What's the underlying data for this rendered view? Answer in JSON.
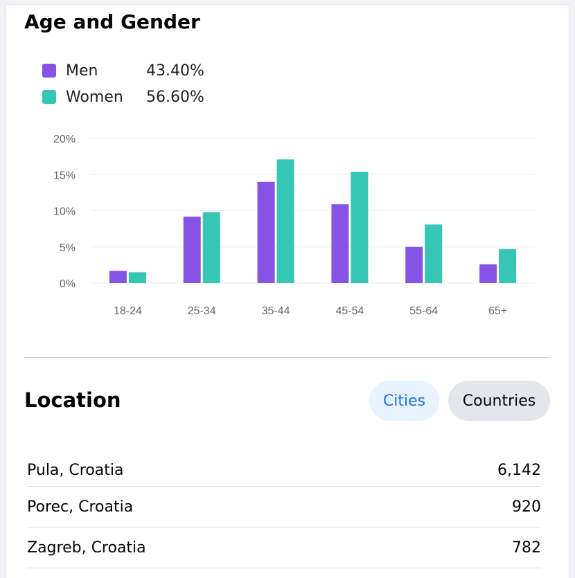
{
  "age_gender": {
    "title": "Age and Gender",
    "legend": [
      {
        "label": "Men",
        "value": "43.40%",
        "color": "#8752e6"
      },
      {
        "label": "Women",
        "value": "56.60%",
        "color": "#36c6b5"
      }
    ]
  },
  "chart_data": {
    "type": "bar",
    "categories": [
      "18-24",
      "25-34",
      "35-44",
      "45-54",
      "55-64",
      "65+"
    ],
    "series": [
      {
        "name": "Men",
        "color": "#8752e6",
        "values": [
          1.7,
          9.2,
          14.0,
          10.9,
          5.0,
          2.6
        ]
      },
      {
        "name": "Women",
        "color": "#36c6b5",
        "values": [
          1.5,
          9.8,
          17.1,
          15.4,
          8.1,
          4.7
        ]
      }
    ],
    "y_ticks": [
      "20%",
      "15%",
      "10%",
      "5%",
      "0%"
    ],
    "ylim": [
      0,
      20
    ],
    "grid": true,
    "legend": "top-left"
  },
  "location": {
    "title": "Location",
    "tabs": {
      "cities": "Cities",
      "countries": "Countries"
    },
    "rows": [
      {
        "name": "Pula, Croatia",
        "value": "6,142"
      },
      {
        "name": "Porec, Croatia",
        "value": "920"
      },
      {
        "name": "Zagreb, Croatia",
        "value": "782"
      }
    ]
  }
}
